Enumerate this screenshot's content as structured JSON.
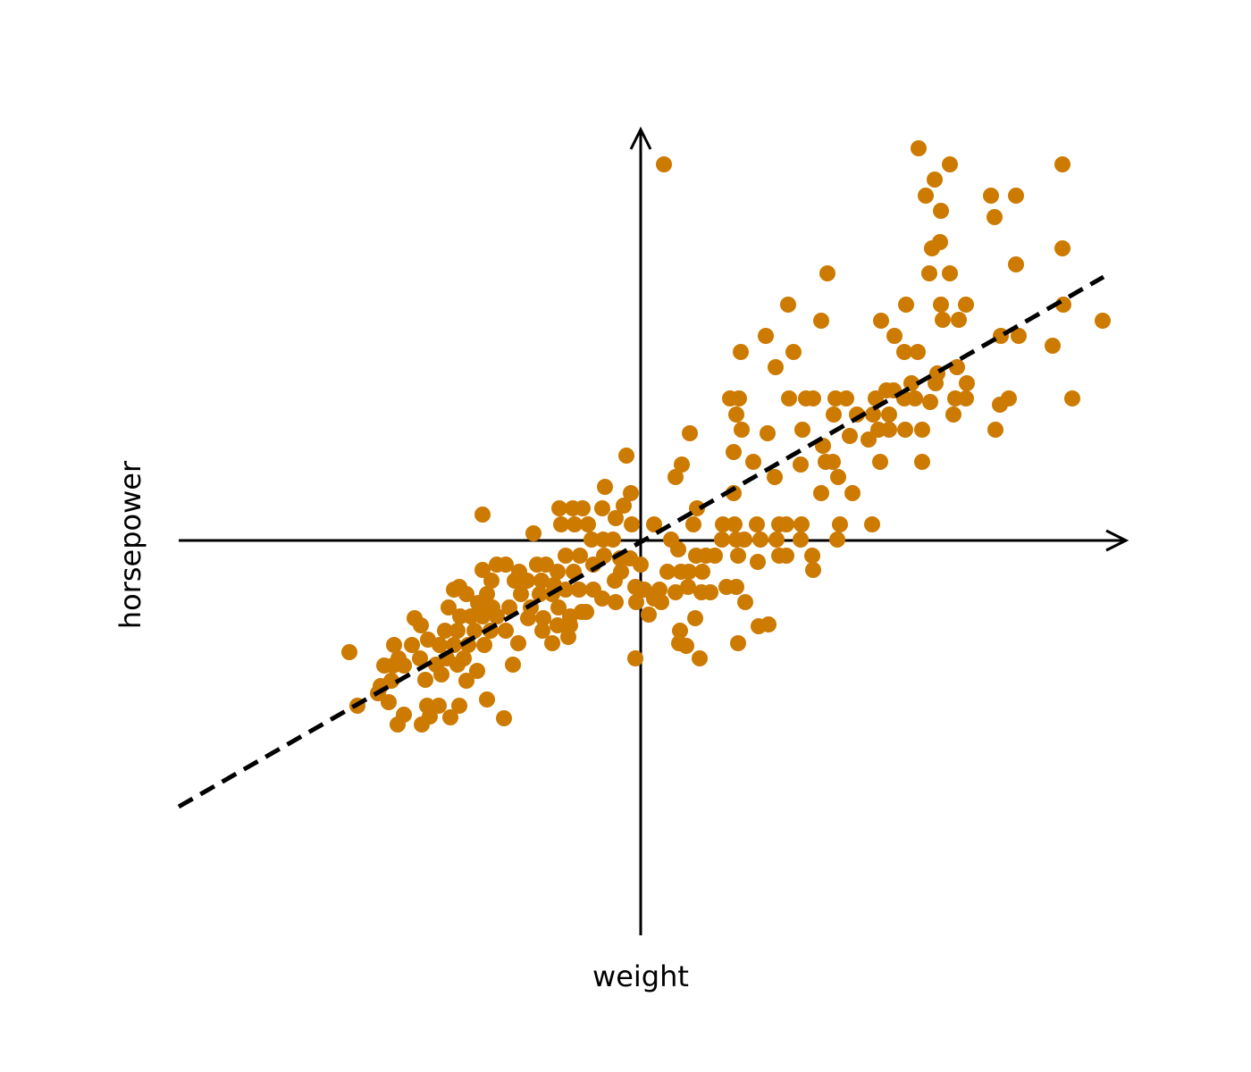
{
  "chart_data": {
    "type": "scatter",
    "x_label": "weight",
    "y_label": "horsepower",
    "xlim": [
      -5.17,
      5.43
    ],
    "ylim": [
      -4.42,
      4.6
    ],
    "color": "#cc7a00",
    "x": [
      0.26,
      3.11,
      3.46,
      3.29,
      3.19,
      3.36,
      3.92,
      4.2,
      3.96,
      4.72,
      4.72,
      3.35,
      3.26,
      3.23,
      3.46,
      4.2,
      2.09,
      2.97,
      3.36,
      3.64,
      3.38,
      3.56,
      4.73,
      5.17,
      2.69,
      2.02,
      1.65,
      1.4,
      2.84,
      2.95,
      3.1,
      1.12,
      1.71,
      1.51,
      4.03,
      4.23,
      4.61,
      3.54,
      3.32,
      3.3,
      3.65,
      3.03,
      2.75,
      2.83,
      2.95,
      3.07,
      3.24,
      3.52,
      3.64,
      4.12,
      4.02,
      4.83,
      1,
      1.1,
      1.66,
      1.85,
      1.93,
      2.18,
      2.3,
      2.63,
      1.07,
      2.16,
      2.42,
      2.6,
      2.78,
      3.5,
      1.13,
      1.42,
      1.81,
      2.34,
      2.55,
      2.66,
      2.78,
      2.96,
      3.15,
      3.97,
      0.55,
      1.04,
      1.26,
      1.79,
      2.07,
      2.15,
      2.68,
      3.15,
      2.04,
      0.46,
      0.39,
      1.5,
      2.21,
      2.37,
      2.02,
      1.04,
      -0.16,
      -0.4,
      -0.11,
      -0.19,
      0.63,
      -0.91,
      -0.76,
      -0.65,
      -0.43,
      -0.28,
      -1.77,
      -0.89,
      -0.74,
      -0.59,
      -0.1,
      0.15,
      0.59,
      0.92,
      1.05,
      1.3,
      1.55,
      1.63,
      1.8,
      2.23,
      2.59,
      -1.2,
      -0.55,
      -0.42,
      -0.31,
      0.34,
      0.91,
      1.07,
      1.16,
      1.34,
      1.52,
      1.79,
      2.2,
      0.42,
      0.73,
      0.83,
      0.62,
      1.09,
      1.31,
      1.55,
      1.63,
      1.92,
      1.93,
      -0.84,
      -0.68,
      -0.41,
      -0.23,
      -0.12,
      0,
      -1.77,
      -1.61,
      -1.51,
      -1.36,
      -1.16,
      -1.06,
      -0.93,
      -0.75,
      -0.53,
      -0.22,
      0.3,
      0.45,
      0.54,
      0.69,
      -1.67,
      -1.41,
      -1.27,
      -1.11,
      -0.97,
      -0.84,
      -0.69,
      -0.53,
      -0.29,
      -0.06,
      0.04,
      0.21,
      0.39,
      0.53,
      0.68,
      0.78,
      0.96,
      1.07,
      -2.09,
      -2.03,
      -1.95,
      -1.72,
      -1.34,
      -1.13,
      -0.99,
      -0.43,
      -0.28,
      -0.05,
      0.15,
      0.23,
      1.17,
      -1.82,
      -1.66,
      -1.47,
      -1.23,
      -0.92,
      -0.66,
      -2.15,
      -2.02,
      -1.9,
      -1.77,
      -1.61,
      -1.26,
      -1.09,
      -0.79,
      -0.61,
      0.09,
      0.61,
      -2.53,
      -2.46,
      -2.19,
      -2.05,
      -1.86,
      -1.68,
      -1.51,
      -1.1,
      -0.93,
      -0.79,
      0.44,
      1.32,
      1.43,
      -2.76,
      -2.56,
      -2.38,
      -2.25,
      -2.09,
      -1.93,
      -1.75,
      -1.37,
      -0.99,
      -0.81,
      0.43,
      0.51,
      1.09,
      -3.26,
      -2.71,
      -2.47,
      -2.17,
      -1.98,
      -1.43,
      -0.06,
      0.66,
      -2.87,
      -2.77,
      -2.65,
      -2.29,
      -2.05,
      -1.83,
      -2.41,
      -2.23,
      -1.95,
      -2.79,
      -2.91,
      -2.94,
      -2.82,
      -1.72,
      -3.17,
      -2.39,
      -2.26,
      -2.03,
      -2.65,
      -2.36,
      -2.13,
      -1.53,
      -2.72,
      -2.45
    ],
    "values": [
      4.21,
      4.39,
      4.21,
      4.04,
      3.86,
      3.69,
      3.86,
      3.86,
      3.62,
      4.21,
      3.27,
      3.34,
      3.27,
      2.99,
      2.99,
      3.09,
      2.99,
      2.64,
      2.64,
      2.64,
      2.47,
      2.47,
      2.64,
      2.46,
      2.46,
      2.46,
      2.64,
      2.29,
      2.29,
      2.11,
      2.11,
      2.11,
      2.11,
      1.94,
      2.29,
      2.29,
      2.18,
      1.94,
      1.87,
      1.76,
      1.76,
      1.76,
      1.68,
      1.68,
      1.59,
      1.59,
      1.55,
      1.59,
      1.59,
      1.59,
      1.52,
      1.59,
      1.59,
      1.59,
      1.59,
      1.59,
      1.59,
      1.59,
      1.59,
      1.59,
      1.41,
      1.41,
      1.41,
      1.41,
      1.41,
      1.41,
      1.24,
      1.2,
      1.24,
      1.17,
      1.13,
      1.24,
      1.24,
      1.24,
      1.24,
      1.24,
      1.2,
      0.99,
      0.88,
      0.85,
      0.88,
      0.88,
      0.88,
      0.88,
      1.06,
      0.85,
      0.71,
      0.71,
      0.71,
      0.53,
      0.53,
      0.53,
      0.95,
      0.6,
      0.53,
      0.39,
      0.36,
      0.36,
      0.36,
      0.36,
      0.36,
      0.25,
      0.29,
      0.18,
      0.18,
      0.18,
      0.18,
      0.18,
      0.18,
      0.18,
      0.18,
      0.18,
      0.18,
      0.18,
      0.18,
      0.18,
      0.18,
      0.08,
      0.01,
      0.01,
      0.01,
      0.01,
      0.01,
      0.01,
      0.01,
      0.01,
      0.01,
      0.01,
      0.01,
      -0.1,
      -0.17,
      -0.17,
      -0.17,
      -0.17,
      -0.24,
      -0.17,
      -0.17,
      -0.17,
      -0.33,
      -0.17,
      -0.17,
      -0.17,
      -0.2,
      -0.2,
      -0.27,
      -0.33,
      -0.27,
      -0.27,
      -0.35,
      -0.27,
      -0.27,
      -0.35,
      -0.35,
      -0.27,
      -0.35,
      -0.35,
      -0.35,
      -0.35,
      -0.35,
      -0.45,
      -0.45,
      -0.45,
      -0.45,
      -0.5,
      -0.55,
      -0.55,
      -0.55,
      -0.45,
      -0.52,
      -0.55,
      -0.55,
      -0.58,
      -0.52,
      -0.58,
      -0.58,
      -0.52,
      -0.52,
      -0.55,
      -0.52,
      -0.6,
      -0.6,
      -0.6,
      -0.6,
      -0.6,
      -0.65,
      -0.69,
      -0.69,
      -0.65,
      -0.69,
      -0.69,
      -0.7,
      -0.75,
      -0.75,
      -0.75,
      -0.75,
      -0.8,
      -0.75,
      -0.85,
      -0.85,
      -0.85,
      -0.85,
      -0.87,
      -0.87,
      -0.85,
      -0.8,
      -0.83,
      -0.87,
      -0.87,
      -0.95,
      -1.01,
      -1.01,
      -1.01,
      -1.01,
      -1.01,
      -1.01,
      -0.95,
      -0.95,
      -1.01,
      -0.96,
      -0.94,
      -1.17,
      -1.17,
      -1.11,
      -1.17,
      -1.17,
      -1.17,
      -1.17,
      -1.15,
      -1.15,
      -1.08,
      -1.15,
      -1.18,
      -1.15,
      -1.25,
      -1.32,
      -1.32,
      -1.32,
      -1.32,
      -1.39,
      -1.32,
      -1.32,
      -1.4,
      -1.4,
      -1.4,
      -1.39,
      -1.39,
      -1.46,
      -1.56,
      -1.5,
      -1.57,
      -1.57,
      -1.63,
      -1.71,
      -1.81,
      -1.78,
      -1.85,
      -1.85,
      -1.85,
      -1.85,
      -1.95,
      -1.97,
      -1.98,
      -1.99,
      -2.06,
      -2.06
    ],
    "fit_line": {
      "x": [
        -5.17,
        5.18
      ],
      "values": [
        -2.98,
        2.95
      ],
      "color": "#000000"
    }
  }
}
